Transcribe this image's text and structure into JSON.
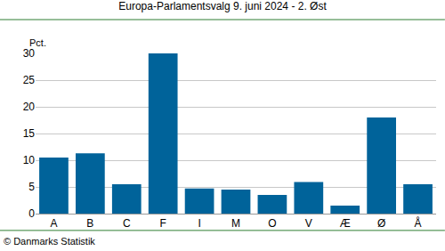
{
  "chart_data": {
    "type": "bar",
    "title": "Europa-Parlamentsvalg 9. juni 2024 - 2. Øst",
    "y_label": "Pct.",
    "source": "© Danmarks Statistik",
    "categories": [
      "A",
      "B",
      "C",
      "F",
      "I",
      "M",
      "O",
      "V",
      "Æ",
      "Ø",
      "Å"
    ],
    "values": [
      10.5,
      11.3,
      5.5,
      30.0,
      4.7,
      4.5,
      3.5,
      5.9,
      1.5,
      18.0,
      5.5
    ],
    "color": "#00639a",
    "ylim": [
      0,
      30
    ],
    "yticks": [
      0,
      5,
      10,
      15,
      20,
      25,
      30
    ],
    "grid": true
  }
}
